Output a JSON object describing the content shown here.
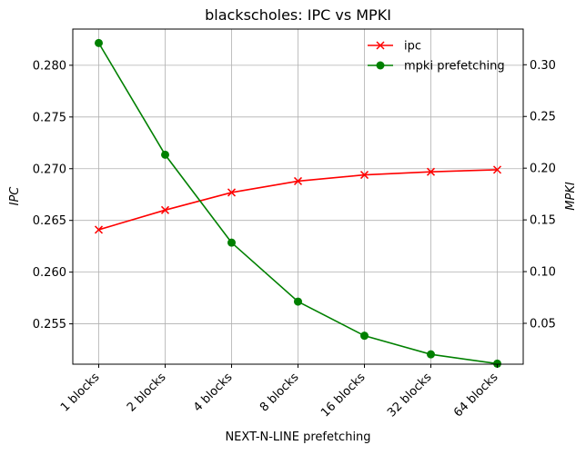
{
  "chart_data": {
    "type": "line",
    "title": "blackscholes: IPC vs MPKI",
    "xlabel": "NEXT-N-LINE prefetching",
    "ylabel_left": "IPC",
    "ylabel_right": "MPKI",
    "categories": [
      "1 blocks",
      "2 blocks",
      "4 blocks",
      "8 blocks",
      "16 blocks",
      "32 blocks",
      "64 blocks"
    ],
    "y_left": {
      "lim": [
        0.2511,
        0.2835
      ],
      "ticks": [
        0.255,
        0.26,
        0.265,
        0.27,
        0.275,
        0.28
      ],
      "tick_labels": [
        "0.255",
        "0.260",
        "0.265",
        "0.270",
        "0.275",
        "0.280"
      ]
    },
    "y_right": {
      "lim": [
        0.0105,
        0.3345
      ],
      "ticks": [
        0.05,
        0.1,
        0.15,
        0.2,
        0.25,
        0.3
      ],
      "tick_labels": [
        "0.05",
        "0.10",
        "0.15",
        "0.20",
        "0.25",
        "0.30"
      ]
    },
    "series": [
      {
        "name": "ipc",
        "axis": "left",
        "color": "#ff0000",
        "marker": "x",
        "values": [
          0.2641,
          0.266,
          0.2677,
          0.2688,
          0.2694,
          0.2697,
          0.2699
        ]
      },
      {
        "name": "mpki prefetching",
        "axis": "right",
        "color": "#008000",
        "marker": "circle",
        "values": [
          0.321,
          0.213,
          0.128,
          0.071,
          0.038,
          0.02,
          0.011
        ]
      }
    ],
    "grid": true,
    "legend_position": "top-right"
  }
}
